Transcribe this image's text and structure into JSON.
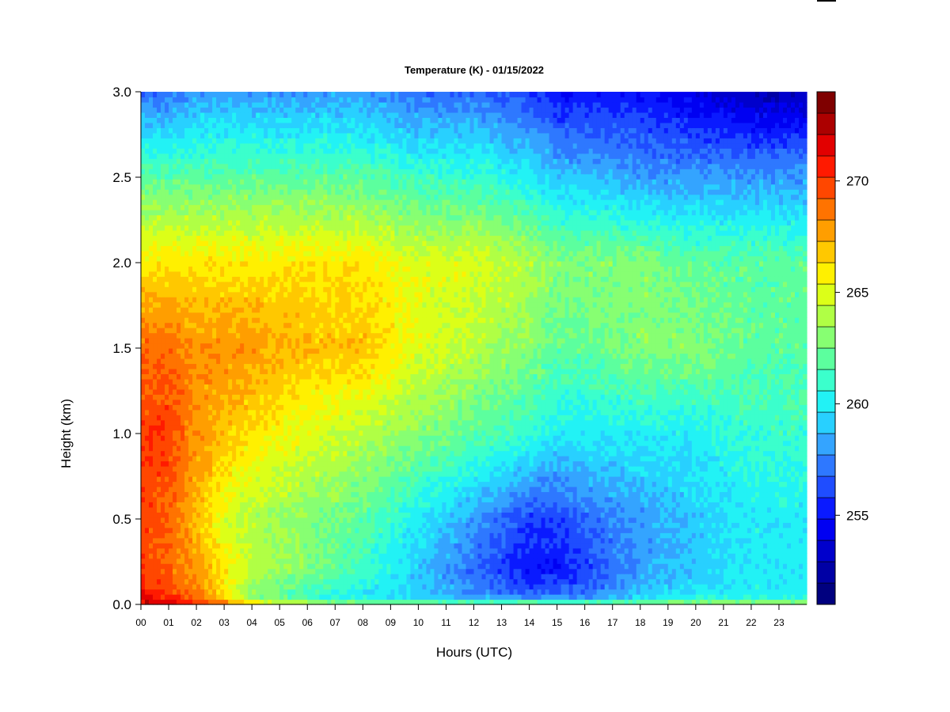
{
  "chart_data": {
    "type": "heatmap",
    "title": "Temperature (K) - 01/15/2022",
    "xlabel": "Hours (UTC)",
    "ylabel": "Height (km)",
    "xlim": [
      0,
      24
    ],
    "ylim": [
      0.0,
      3.0
    ],
    "x_ticks": [
      "00",
      "01",
      "02",
      "03",
      "04",
      "05",
      "06",
      "07",
      "08",
      "09",
      "10",
      "11",
      "12",
      "13",
      "14",
      "15",
      "16",
      "17",
      "18",
      "19",
      "20",
      "21",
      "22",
      "23"
    ],
    "y_ticks": [
      "0.0",
      "0.5",
      "1.0",
      "1.5",
      "2.0",
      "2.5",
      "3.0"
    ],
    "colorbar": {
      "range": [
        251,
        274
      ],
      "ticks": [
        "255",
        "260",
        "265",
        "270"
      ],
      "levels": [
        "#00007f",
        "#0000a5",
        "#0000cc",
        "#0000f2",
        "#0a1aff",
        "#1f4dff",
        "#2e78ff",
        "#34a4ff",
        "#28d0ff",
        "#22f2f5",
        "#3bffcc",
        "#5cff9e",
        "#87ff72",
        "#b0ff45",
        "#dcff18",
        "#fff000",
        "#ffc800",
        "#ff9e00",
        "#ff7300",
        "#ff4700",
        "#ff1a00",
        "#e20000",
        "#ac0000",
        "#7f0000"
      ]
    },
    "grid": false,
    "legend": "colorbar-right",
    "field_samples": {
      "note_hours": [
        0,
        1,
        2,
        3,
        4,
        6,
        8,
        10,
        12,
        14,
        15,
        16,
        18,
        20,
        22,
        24
      ],
      "note_heights_km": [
        0.0,
        0.05,
        0.2,
        0.5,
        1.0,
        1.5,
        2.0,
        2.5,
        3.0
      ],
      "values_K": [
        [
          272,
          272,
          271,
          269,
          266,
          264,
          263,
          263,
          263,
          263,
          263,
          263,
          263,
          264,
          264,
          264
        ],
        [
          271,
          270,
          269,
          266,
          263,
          261,
          260,
          259,
          258,
          257,
          257,
          257,
          259,
          260,
          260,
          260
        ],
        [
          270,
          269,
          268,
          266,
          264,
          263,
          261,
          259,
          257,
          255,
          255,
          256,
          258,
          259,
          260,
          260
        ],
        [
          270,
          269,
          267,
          265,
          264,
          263,
          262,
          260,
          258,
          256,
          256,
          257,
          258,
          259,
          260,
          260
        ],
        [
          270,
          270,
          268,
          267,
          266,
          265,
          264,
          263,
          262,
          261,
          260,
          260,
          260,
          260,
          261,
          261
        ],
        [
          269,
          269,
          268,
          268,
          268,
          267,
          267,
          265,
          264,
          263,
          262,
          262,
          263,
          263,
          262,
          262
        ],
        [
          266,
          266,
          266,
          266,
          266,
          266,
          266,
          265,
          265,
          264,
          263,
          263,
          263,
          262,
          262,
          262
        ],
        [
          262,
          262,
          262,
          262,
          262,
          262,
          262,
          261,
          261,
          260,
          259,
          259,
          258,
          258,
          258,
          258
        ],
        [
          257,
          257,
          258,
          258,
          258,
          258,
          258,
          257,
          257,
          256,
          255,
          255,
          255,
          254,
          253,
          253
        ]
      ]
    }
  }
}
